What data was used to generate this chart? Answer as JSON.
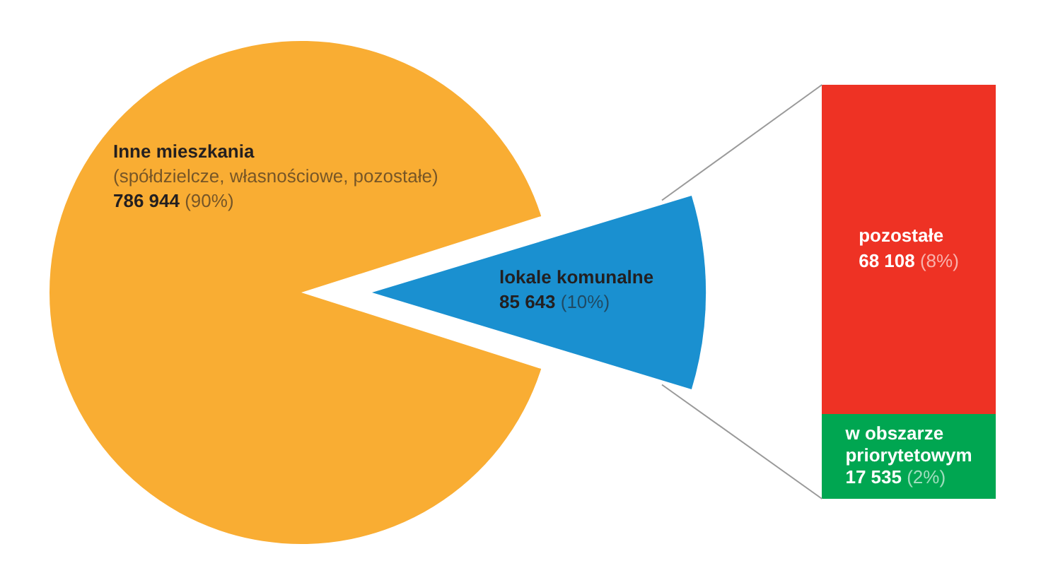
{
  "chart_data": [
    {
      "type": "pie",
      "categories": [
        "Inne mieszkania\n(spółdzielcze, własnościowe, pozostałe)",
        "lokale komunalne"
      ],
      "values": [
        786944,
        85643
      ],
      "colors": [
        "#f9ad33",
        "#1a90d0"
      ],
      "value_labels": [
        "786 944 (90%)",
        "85 643 (10%)"
      ]
    },
    {
      "type": "bar",
      "stacked": true,
      "categories": [
        null
      ],
      "series": [
        {
          "name": "w obszarze priorytetowym",
          "color": "#00a651",
          "values": [
            17535
          ],
          "value_labels": [
            "17 535 (2%)"
          ]
        },
        {
          "name": "pozostałe",
          "color": "#ee3224",
          "values": [
            68108
          ],
          "value_labels": [
            "68 108 (8%)"
          ]
        }
      ],
      "tick_labels": false
    }
  ]
}
